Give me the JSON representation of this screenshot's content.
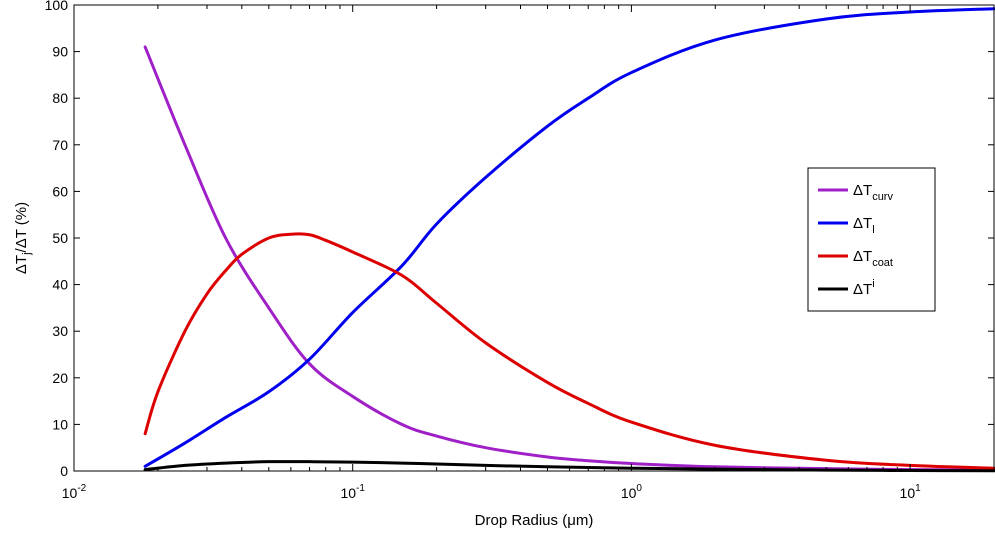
{
  "chart_data": {
    "type": "line",
    "xscale": "log",
    "xlim": [
      0.01,
      20
    ],
    "ylim": [
      0,
      100
    ],
    "xlabel": "Drop Radius (μm)",
    "ylabel": "ΔT_j/ΔT (%)",
    "grid": false,
    "legend_position": "right",
    "y_ticks": [
      0,
      10,
      20,
      30,
      40,
      50,
      60,
      70,
      80,
      90,
      100
    ],
    "x_ticks": [
      {
        "value": 0.01,
        "base": "10",
        "exp": "-2"
      },
      {
        "value": 0.1,
        "base": "10",
        "exp": "-1"
      },
      {
        "value": 1,
        "base": "10",
        "exp": "0"
      },
      {
        "value": 10,
        "base": "10",
        "exp": "1"
      }
    ],
    "series": [
      {
        "name": "ΔT_curv",
        "label_main": "ΔT",
        "label_sub": "curv",
        "label_sup": "",
        "color": "#a020c8",
        "x": [
          0.018,
          0.025,
          0.035,
          0.05,
          0.07,
          0.1,
          0.15,
          0.2,
          0.3,
          0.5,
          0.7,
          1,
          2,
          5,
          10,
          20
        ],
        "y": [
          91,
          70,
          50,
          35,
          23,
          16,
          10,
          7.5,
          5,
          3,
          2.2,
          1.6,
          0.9,
          0.5,
          0.3,
          0.2
        ]
      },
      {
        "name": "ΔT_l",
        "label_main": "ΔT",
        "label_sub": "l",
        "label_sup": "",
        "color": "#0000ee",
        "x": [
          0.018,
          0.025,
          0.035,
          0.05,
          0.07,
          0.1,
          0.15,
          0.2,
          0.3,
          0.5,
          0.7,
          1,
          2,
          5,
          10,
          20
        ],
        "y": [
          1,
          6,
          11.5,
          17,
          24,
          34,
          44,
          53,
          63,
          74,
          80,
          85.5,
          92.5,
          97,
          98.5,
          99.2
        ]
      },
      {
        "name": "ΔT_coat",
        "label_main": "ΔT",
        "label_sub": "coat",
        "label_sup": "",
        "color": "#dd0000",
        "x": [
          0.018,
          0.02,
          0.025,
          0.03,
          0.035,
          0.04,
          0.05,
          0.06,
          0.07,
          0.08,
          0.1,
          0.15,
          0.2,
          0.3,
          0.5,
          0.7,
          1,
          2,
          5,
          10,
          20
        ],
        "y": [
          8,
          17,
          30,
          38,
          43,
          46.5,
          50,
          50.8,
          50.7,
          49.5,
          47,
          42,
          36,
          27.5,
          19,
          14.5,
          10.5,
          5.5,
          2.3,
          1.2,
          0.6
        ]
      },
      {
        "name": "ΔT^i",
        "label_main": "ΔT",
        "label_sub": "",
        "label_sup": "i",
        "color": "#000000",
        "x": [
          0.018,
          0.025,
          0.035,
          0.05,
          0.07,
          0.1,
          0.15,
          0.2,
          0.3,
          0.5,
          1,
          2,
          5,
          10,
          20
        ],
        "y": [
          0.3,
          1.2,
          1.7,
          2.0,
          2.0,
          1.9,
          1.7,
          1.5,
          1.2,
          0.9,
          0.6,
          0.4,
          0.2,
          0.1,
          0.05
        ]
      }
    ]
  }
}
